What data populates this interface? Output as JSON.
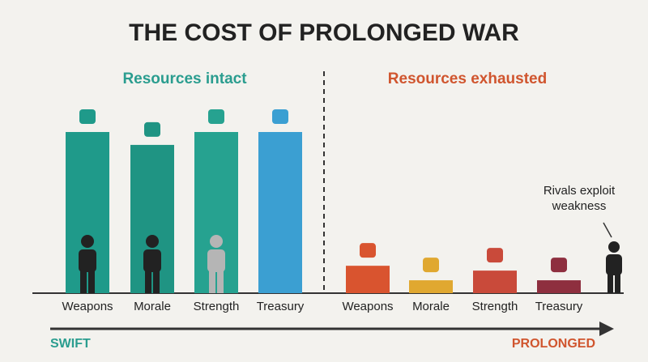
{
  "title": "THE COST OF PROLONGED WAR",
  "chart_data": [
    {
      "type": "bar",
      "subtitle": "Resources intact",
      "subtitle_color": "#2a9d8f",
      "categories": [
        "Weapons",
        "Morale",
        "Strength",
        "Treasury"
      ],
      "values": [
        100,
        92,
        100,
        100
      ],
      "colors": [
        "#1f9a8a",
        "#1f9483",
        "#26a290",
        "#3b9fd2"
      ],
      "ylim": [
        0,
        100
      ]
    },
    {
      "type": "bar",
      "subtitle": "Resources exhausted",
      "subtitle_color": "#d0552e",
      "categories": [
        "Weapons",
        "Morale",
        "Strength",
        "Treasury"
      ],
      "values": [
        17,
        8,
        14,
        8
      ],
      "colors": [
        "#d9542f",
        "#e0a830",
        "#c94a3a",
        "#8e2f3f"
      ],
      "ylim": [
        0,
        100
      ]
    }
  ],
  "annotation": "Rivals exploit weakness",
  "timeline": {
    "start": "SWIFT",
    "end": "PROLONGED"
  }
}
